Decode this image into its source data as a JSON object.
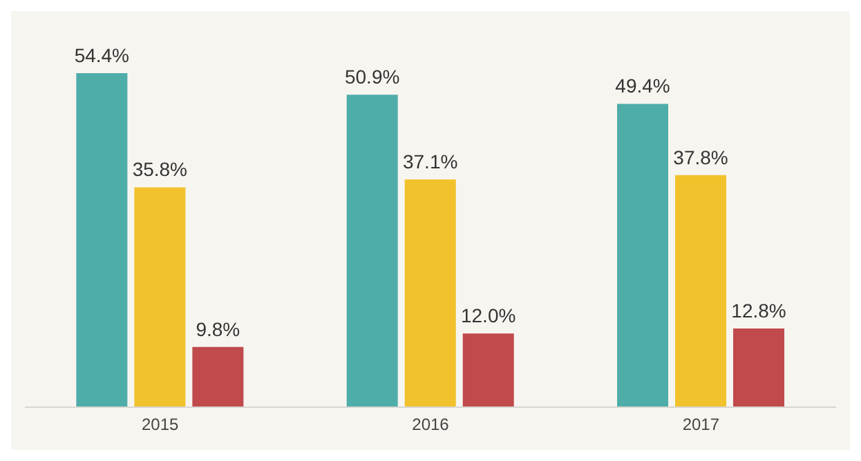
{
  "chart_data": {
    "type": "bar",
    "categories": [
      "2015",
      "2016",
      "2017"
    ],
    "series": [
      {
        "color": "#4fada9",
        "values": [
          54.4,
          50.9,
          49.4
        ],
        "value_labels": [
          "54.4%",
          "50.9%",
          "49.4%"
        ]
      },
      {
        "color": "#f1c22c",
        "values": [
          35.8,
          37.1,
          37.8
        ],
        "value_labels": [
          "35.8%",
          "37.1%",
          "37.8%"
        ]
      },
      {
        "color": "#c04a4c",
        "values": [
          9.8,
          12.0,
          12.8
        ],
        "value_labels": [
          "9.8%",
          "12.0%",
          "12.8%"
        ]
      }
    ],
    "grid": false,
    "legend": false
  }
}
